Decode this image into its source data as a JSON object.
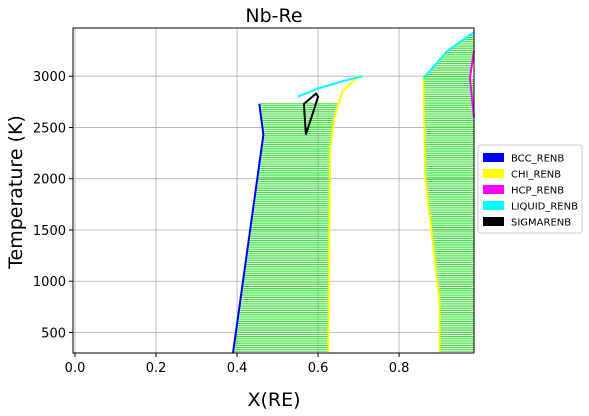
{
  "chart_data": {
    "type": "line",
    "title": "Nb-Re",
    "xlabel": "X(RE)",
    "ylabel": "Temperature (K)",
    "xlim": [
      -0.005,
      0.985
    ],
    "ylim": [
      300,
      3470
    ],
    "x_ticks": [
      0.0,
      0.2,
      0.4,
      0.6,
      0.8
    ],
    "x_tick_labels": [
      "0.0",
      "0.2",
      "0.4",
      "0.6",
      "0.8"
    ],
    "y_ticks": [
      500,
      1000,
      1500,
      2000,
      2500,
      3000
    ],
    "y_tick_labels": [
      "500",
      "1000",
      "1500",
      "2000",
      "2500",
      "3000"
    ],
    "grid": true,
    "legend_position": "right-outside",
    "tie_line_color": "#22dd22",
    "series": [
      {
        "name": "BCC_RENB",
        "color": "#0000ff",
        "x": [
          0.39,
          0.465,
          0.455
        ],
        "y": [
          300,
          2430,
          2730
        ]
      },
      {
        "name": "CHI_RENB",
        "color": "#ffff00",
        "x": [
          0.625,
          0.63,
          0.64,
          0.66,
          0.7
        ],
        "x2": [
          0.86,
          0.865,
          0.9,
          0.9
        ],
        "y": [
          300,
          2300,
          2600,
          2850,
          3000
        ],
        "y2": [
          2980,
          2000,
          800,
          300
        ]
      },
      {
        "name": "HCP_RENB",
        "color": "#ff00ff",
        "x": [
          0.985,
          0.975,
          0.985
        ],
        "y": [
          3250,
          2980,
          2600
        ]
      },
      {
        "name": "LIQUID_RENB",
        "color": "#00ffff",
        "x": [
          0.55,
          0.6,
          0.66,
          0.71
        ],
        "y": [
          2800,
          2880,
          2950,
          3000
        ],
        "x2": [
          0.86,
          0.92,
          0.985
        ],
        "y2": [
          2980,
          3250,
          3430
        ]
      },
      {
        "name": "SIGMARENB",
        "color": "#000000",
        "x": [
          0.57,
          0.565,
          0.595,
          0.6,
          0.57
        ],
        "y": [
          2430,
          2730,
          2830,
          2800,
          2430
        ]
      }
    ],
    "tie_regions": [
      {
        "left": [
          [
            0.39,
            300
          ],
          [
            0.465,
            2430
          ],
          [
            0.455,
            2730
          ]
        ],
        "right": [
          [
            0.625,
            300
          ],
          [
            0.63,
            2300
          ],
          [
            0.64,
            2600
          ],
          [
            0.66,
            2850
          ],
          [
            0.7,
            3000
          ]
        ]
      },
      {
        "left": [
          [
            0.9,
            300
          ],
          [
            0.9,
            800
          ],
          [
            0.865,
            2000
          ],
          [
            0.86,
            2980
          ]
        ],
        "right": [
          [
            0.985,
            300
          ],
          [
            0.985,
            800
          ],
          [
            0.985,
            2000
          ],
          [
            0.985,
            2980
          ]
        ]
      },
      {
        "left": [
          [
            0.86,
            2980
          ],
          [
            0.92,
            3250
          ],
          [
            0.985,
            3430
          ]
        ],
        "right": [
          [
            0.975,
            2980
          ],
          [
            0.985,
            3250
          ],
          [
            0.985,
            3430
          ]
        ]
      }
    ]
  }
}
